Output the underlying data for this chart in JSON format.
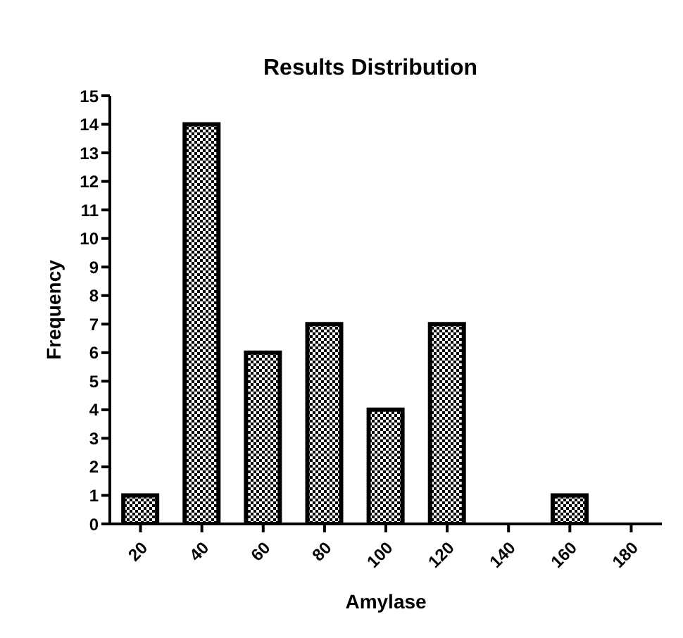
{
  "chart_data": {
    "type": "bar",
    "title": "Results Distribution",
    "xlabel": "Amylase",
    "ylabel": "Frequency",
    "categories": [
      "20",
      "40",
      "60",
      "80",
      "100",
      "120",
      "140",
      "160",
      "180"
    ],
    "values": [
      1,
      14,
      6,
      7,
      4,
      7,
      0,
      1,
      0
    ],
    "color": "#000000",
    "ylim": [
      0,
      15
    ],
    "yticks": [
      0,
      1,
      2,
      3,
      4,
      5,
      6,
      7,
      8,
      9,
      10,
      11,
      12,
      13,
      14,
      15
    ],
    "grid": false,
    "legend": false
  }
}
